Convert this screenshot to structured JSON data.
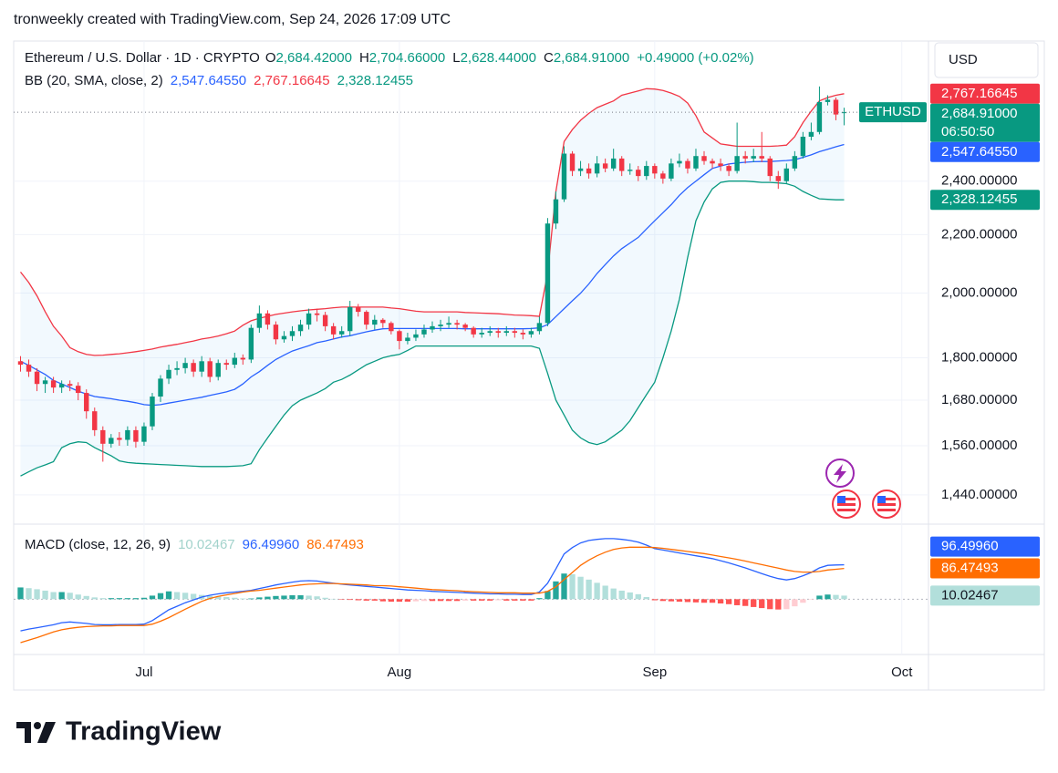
{
  "header": {
    "title": "tronweekly created with TradingView.com, Sep 24, 2026 17:09 UTC"
  },
  "footer": {
    "brand": "TradingView"
  },
  "chart_data": [
    {
      "type": "candlestick",
      "symbol": "Ethereum / U.S. Dollar · 1D · CRYPTO",
      "ohlc_legend": [
        {
          "key": "O",
          "value": "2,684.42000"
        },
        {
          "key": "H",
          "value": "2,704.66000"
        },
        {
          "key": "L",
          "value": "2,628.44000"
        },
        {
          "key": "C",
          "value": "2,684.91000"
        }
      ],
      "change": "+0.49000 (+0.02%)",
      "currency": "USD",
      "symbol_tag": "ETHUSD",
      "close_label": "2,684.91000",
      "countdown": "06:50:50",
      "up_color": "#089981",
      "down_color": "#f23645",
      "log_scale": true,
      "grid": true,
      "xlim": [
        -0.83,
        110.24
      ],
      "xticks": [
        {
          "value": 15,
          "label": "Jul"
        },
        {
          "value": 46,
          "label": "Aug"
        },
        {
          "value": 77,
          "label": "Sep"
        },
        {
          "value": 107,
          "label": "Oct"
        }
      ],
      "ylim": [
        1373,
        3015
      ],
      "yticks": [
        {
          "value": 1440,
          "label": "1,440.00000"
        },
        {
          "value": 1560,
          "label": "1,560.00000"
        },
        {
          "value": 1680,
          "label": "1,680.00000"
        },
        {
          "value": 1800,
          "label": "1,800.00000"
        },
        {
          "value": 2000,
          "label": "2,000.00000"
        },
        {
          "value": 2200,
          "label": "2,200.00000"
        },
        {
          "value": 2400,
          "label": "2,400.00000"
        }
      ],
      "open": [
        1790,
        1780,
        1760,
        1725,
        1735,
        1715,
        1725,
        1720,
        1700,
        1650,
        1600,
        1565,
        1580,
        1575,
        1600,
        1570,
        1610,
        1690,
        1740,
        1765,
        1770,
        1785,
        1760,
        1790,
        1745,
        1785,
        1780,
        1800,
        1795,
        1890,
        1935,
        1900,
        1855,
        1865,
        1880,
        1900,
        1935,
        1930,
        1895,
        1870,
        1880,
        1955,
        1940,
        1900,
        1915,
        1905,
        1880,
        1850,
        1860,
        1870,
        1885,
        1895,
        1900,
        1905,
        1900,
        1890,
        1870,
        1875,
        1880,
        1875,
        1880,
        1875,
        1870,
        1880,
        1905,
        2240,
        2330,
        2510,
        2440,
        2450,
        2430,
        2470,
        2450,
        2490,
        2440,
        2445,
        2420,
        2460,
        2430,
        2410,
        2470,
        2480,
        2450,
        2500,
        2480,
        2470,
        2460,
        2440,
        2500,
        2490,
        2500,
        2490,
        2420,
        2400,
        2450,
        2500,
        2580,
        2600,
        2730,
        2740,
        2684.42
      ],
      "high": [
        1805,
        1795,
        1770,
        1745,
        1745,
        1735,
        1735,
        1730,
        1710,
        1660,
        1610,
        1590,
        1595,
        1610,
        1610,
        1620,
        1700,
        1750,
        1780,
        1790,
        1800,
        1795,
        1805,
        1800,
        1795,
        1795,
        1815,
        1810,
        1900,
        1960,
        1945,
        1910,
        1880,
        1895,
        1915,
        1950,
        1950,
        1940,
        1905,
        1895,
        1975,
        1965,
        1945,
        1930,
        1920,
        1910,
        1885,
        1875,
        1885,
        1900,
        1910,
        1915,
        1925,
        1915,
        1905,
        1895,
        1890,
        1895,
        1890,
        1895,
        1890,
        1885,
        1890,
        1925,
        2260,
        2360,
        2540,
        2520,
        2480,
        2470,
        2500,
        2490,
        2530,
        2500,
        2470,
        2460,
        2480,
        2470,
        2440,
        2490,
        2510,
        2490,
        2530,
        2520,
        2490,
        2490,
        2470,
        2640,
        2520,
        2530,
        2600,
        2500,
        2440,
        2470,
        2520,
        2600,
        2640,
        2800,
        2760,
        2750,
        2704.66
      ],
      "low": [
        1760,
        1745,
        1705,
        1700,
        1700,
        1700,
        1705,
        1680,
        1630,
        1585,
        1520,
        1555,
        1560,
        1560,
        1555,
        1560,
        1600,
        1675,
        1725,
        1750,
        1755,
        1745,
        1745,
        1730,
        1735,
        1765,
        1770,
        1780,
        1785,
        1875,
        1885,
        1840,
        1845,
        1850,
        1865,
        1885,
        1910,
        1880,
        1855,
        1860,
        1865,
        1925,
        1885,
        1885,
        1890,
        1870,
        1825,
        1840,
        1850,
        1860,
        1875,
        1880,
        1890,
        1885,
        1880,
        1860,
        1860,
        1865,
        1860,
        1865,
        1860,
        1855,
        1860,
        1870,
        1895,
        2220,
        2320,
        2420,
        2420,
        2410,
        2415,
        2435,
        2440,
        2420,
        2425,
        2400,
        2405,
        2410,
        2390,
        2400,
        2455,
        2430,
        2440,
        2465,
        2450,
        2440,
        2420,
        2430,
        2470,
        2475,
        2475,
        2400,
        2370,
        2390,
        2440,
        2490,
        2565,
        2590,
        2715,
        2650,
        2628.44
      ],
      "close": [
        1780,
        1760,
        1725,
        1735,
        1715,
        1725,
        1720,
        1700,
        1650,
        1600,
        1565,
        1580,
        1575,
        1600,
        1570,
        1610,
        1690,
        1740,
        1765,
        1770,
        1785,
        1760,
        1790,
        1745,
        1785,
        1780,
        1800,
        1795,
        1890,
        1935,
        1900,
        1855,
        1865,
        1880,
        1900,
        1935,
        1930,
        1895,
        1870,
        1880,
        1955,
        1940,
        1900,
        1915,
        1905,
        1880,
        1850,
        1860,
        1870,
        1885,
        1895,
        1900,
        1905,
        1900,
        1890,
        1870,
        1875,
        1880,
        1875,
        1880,
        1875,
        1870,
        1880,
        1905,
        2240,
        2330,
        2510,
        2440,
        2450,
        2430,
        2470,
        2450,
        2490,
        2440,
        2445,
        2420,
        2460,
        2430,
        2410,
        2470,
        2480,
        2450,
        2500,
        2480,
        2470,
        2460,
        2440,
        2500,
        2490,
        2500,
        2490,
        2420,
        2400,
        2450,
        2500,
        2580,
        2600,
        2730,
        2740,
        2675,
        2684.91
      ],
      "indicator": "BB (20, SMA, close, 2)",
      "band_fill": "rgba(33,150,243,0.06)",
      "bands": {
        "middle": {
          "color": "#2962ff",
          "last_label": "2,547.64550",
          "values": [
            1790,
            1778,
            1765,
            1752,
            1735,
            1725,
            1715,
            1705,
            1697,
            1690,
            1687,
            1684,
            1680,
            1677,
            1673,
            1668,
            1666,
            1668,
            1672,
            1676,
            1680,
            1684,
            1688,
            1693,
            1698,
            1703,
            1710,
            1725,
            1745,
            1760,
            1778,
            1795,
            1808,
            1820,
            1828,
            1836,
            1845,
            1850,
            1856,
            1862,
            1866,
            1872,
            1878,
            1883,
            1887,
            1888,
            1888,
            1888,
            1888,
            1888,
            1888,
            1888,
            1888,
            1888,
            1887,
            1887,
            1887,
            1887,
            1887,
            1887,
            1887,
            1887,
            1888,
            1890,
            1900,
            1925,
            1950,
            1975,
            2000,
            2030,
            2065,
            2095,
            2125,
            2150,
            2170,
            2190,
            2220,
            2250,
            2280,
            2310,
            2345,
            2375,
            2400,
            2425,
            2450,
            2460,
            2468,
            2472,
            2475,
            2477,
            2478,
            2478,
            2480,
            2482,
            2485,
            2495,
            2505,
            2518,
            2528,
            2538,
            2547.6455
          ]
        },
        "upper": {
          "color": "#f23645",
          "last_label": "2,767.16645",
          "values": [
            2070,
            2035,
            1991,
            1940,
            1895,
            1865,
            1830,
            1818,
            1810,
            1807,
            1808,
            1810,
            1812,
            1815,
            1818,
            1822,
            1826,
            1832,
            1836,
            1840,
            1845,
            1850,
            1856,
            1860,
            1865,
            1872,
            1880,
            1898,
            1912,
            1920,
            1926,
            1932,
            1936,
            1940,
            1943,
            1946,
            1948,
            1950,
            1953,
            1955,
            1955,
            1955,
            1955,
            1955,
            1955,
            1952,
            1950,
            1946,
            1942,
            1940,
            1940,
            1940,
            1940,
            1940,
            1938,
            1937,
            1936,
            1935,
            1934,
            1932,
            1930,
            1929,
            1928,
            1926,
            2066,
            2360,
            2560,
            2610,
            2650,
            2680,
            2705,
            2720,
            2735,
            2760,
            2770,
            2780,
            2790,
            2788,
            2782,
            2770,
            2755,
            2725,
            2670,
            2600,
            2575,
            2550,
            2545,
            2540,
            2540,
            2540,
            2540,
            2540,
            2542,
            2545,
            2580,
            2640,
            2690,
            2735,
            2750,
            2760,
            2767.16645
          ]
        },
        "lower": {
          "color": "#089981",
          "last_label": "2,328.12455",
          "values": [
            1485,
            1495,
            1505,
            1512,
            1520,
            1555,
            1565,
            1570,
            1568,
            1555,
            1545,
            1535,
            1522,
            1518,
            1516,
            1515,
            1514,
            1513,
            1512,
            1511,
            1510,
            1509,
            1508,
            1508,
            1508,
            1508,
            1509,
            1510,
            1515,
            1550,
            1580,
            1610,
            1640,
            1665,
            1680,
            1690,
            1700,
            1712,
            1730,
            1738,
            1750,
            1765,
            1780,
            1790,
            1800,
            1806,
            1810,
            1822,
            1835,
            1835,
            1835,
            1835,
            1835,
            1835,
            1835,
            1835,
            1835,
            1835,
            1835,
            1835,
            1835,
            1835,
            1835,
            1828,
            1755,
            1680,
            1640,
            1600,
            1580,
            1568,
            1563,
            1570,
            1585,
            1600,
            1625,
            1660,
            1695,
            1730,
            1800,
            1880,
            1980,
            2120,
            2250,
            2320,
            2370,
            2395,
            2400,
            2400,
            2400,
            2398,
            2395,
            2395,
            2393,
            2390,
            2380,
            2360,
            2345,
            2332,
            2330,
            2328,
            2328.12455
          ]
        }
      }
    },
    {
      "type": "macd",
      "title": "MACD (close, 12, 26, 9)",
      "ylim": [
        -140,
        198
      ],
      "histogram": {
        "last_label": "10.02467",
        "tag_color": "#b2dfdb",
        "legend_color": "#a3d3cc",
        "colors": {
          "up_rising": "#26a69a",
          "up_falling": "#b2dfdb",
          "down_falling": "#ff5252",
          "down_rising": "#ffcdd2"
        },
        "values": [
          33,
          31,
          28,
          24,
          20,
          20,
          18,
          13,
          9,
          5,
          3,
          3,
          3,
          3,
          3,
          4,
          10,
          17,
          22,
          20,
          18,
          15,
          12,
          9,
          7,
          6,
          4,
          2,
          2,
          5,
          7,
          9,
          10,
          11,
          11,
          10,
          8,
          4,
          1,
          -1,
          -2,
          -3,
          -4,
          -4,
          -6,
          -7,
          -7,
          -7,
          -6,
          -5,
          -5,
          -5,
          -5,
          -5,
          -4,
          -4,
          -4,
          -4,
          -3,
          -4,
          -4,
          -4,
          -4,
          3,
          23,
          50,
          72,
          70,
          63,
          55,
          46,
          38,
          30,
          24,
          19,
          14,
          6,
          -3,
          -5,
          -6,
          -7,
          -8,
          -9,
          -10,
          -10,
          -12,
          -14,
          -17,
          -19,
          -22,
          -25,
          -28,
          -29,
          -28,
          -20,
          -10,
          -1,
          10,
          13,
          12,
          10.02467
        ]
      },
      "macd": {
        "color": "#2962ff",
        "last_label": "96.49960",
        "values": [
          -89,
          -84,
          -80,
          -76,
          -72,
          -66,
          -64,
          -66,
          -68,
          -71,
          -72,
          -72,
          -71,
          -71,
          -71,
          -70,
          -60,
          -45,
          -30,
          -20,
          -10,
          -2,
          6,
          11,
          15,
          18,
          20,
          22,
          25,
          30,
          35,
          40,
          44,
          48,
          51,
          52,
          51,
          48,
          45,
          42,
          40,
          38,
          36,
          34,
          32,
          30,
          28,
          26,
          25,
          24,
          22,
          21,
          20,
          19,
          18,
          17,
          16,
          15,
          15,
          14,
          14,
          13,
          13,
          20,
          45,
          85,
          127,
          145,
          158,
          165,
          168,
          170,
          170,
          168,
          165,
          160,
          152,
          142,
          138,
          134,
          130,
          126,
          122,
          118,
          114,
          108,
          102,
          95,
          88,
          80,
          72,
          64,
          58,
          54,
          58,
          66,
          75,
          88,
          95,
          96,
          96.4996
        ]
      },
      "signal": {
        "color": "#ff6d00",
        "last_label": "86.47493",
        "values": [
          -122,
          -115,
          -108,
          -100,
          -92,
          -86,
          -82,
          -79,
          -77,
          -76,
          -75,
          -75,
          -74,
          -74,
          -74,
          -74,
          -70,
          -62,
          -52,
          -40,
          -28,
          -17,
          -6,
          2,
          8,
          12,
          16,
          20,
          23,
          25,
          28,
          31,
          34,
          37,
          40,
          42,
          43,
          44,
          44,
          43,
          42,
          41,
          40,
          38,
          38,
          37,
          35,
          33,
          31,
          29,
          27,
          26,
          25,
          24,
          22,
          21,
          20,
          19,
          18,
          18,
          18,
          17,
          17,
          17,
          22,
          35,
          55,
          75,
          95,
          110,
          122,
          132,
          140,
          144,
          146,
          146,
          146,
          145,
          143,
          140,
          137,
          134,
          131,
          128,
          124,
          120,
          116,
          112,
          107,
          102,
          97,
          92,
          87,
          82,
          78,
          76,
          76,
          78,
          82,
          84,
          86.47493
        ]
      }
    }
  ]
}
